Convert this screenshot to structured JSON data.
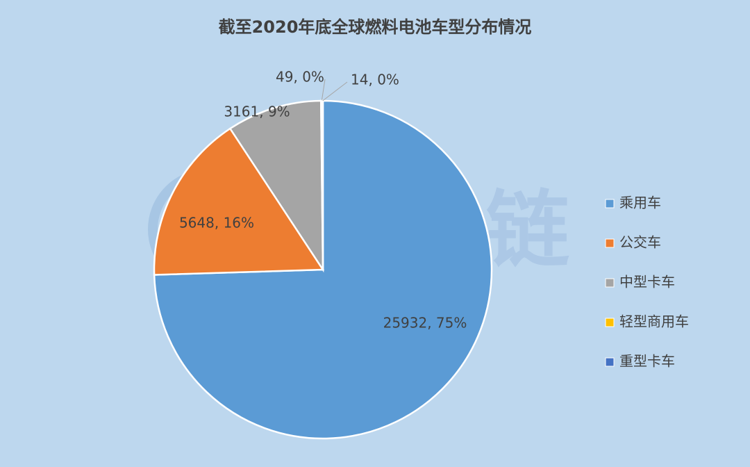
{
  "chart_data": {
    "type": "pie",
    "title": "截至2020年底全球燃料电池车型分布情况",
    "watermark": "氢云链",
    "categories": [
      "乘用车",
      "公交车",
      "中型卡车",
      "轻型商用车",
      "重型卡车"
    ],
    "values": [
      25932,
      5648,
      3161,
      49,
      14
    ],
    "value_labels": [
      "25932, 75%",
      "5648, 16%",
      "3161, 9%",
      "49, 0%",
      "14, 0%"
    ],
    "colors": [
      "#5b9bd5",
      "#ed7d31",
      "#a5a5a5",
      "#ffc000",
      "#4472c4"
    ],
    "legend": "right"
  }
}
